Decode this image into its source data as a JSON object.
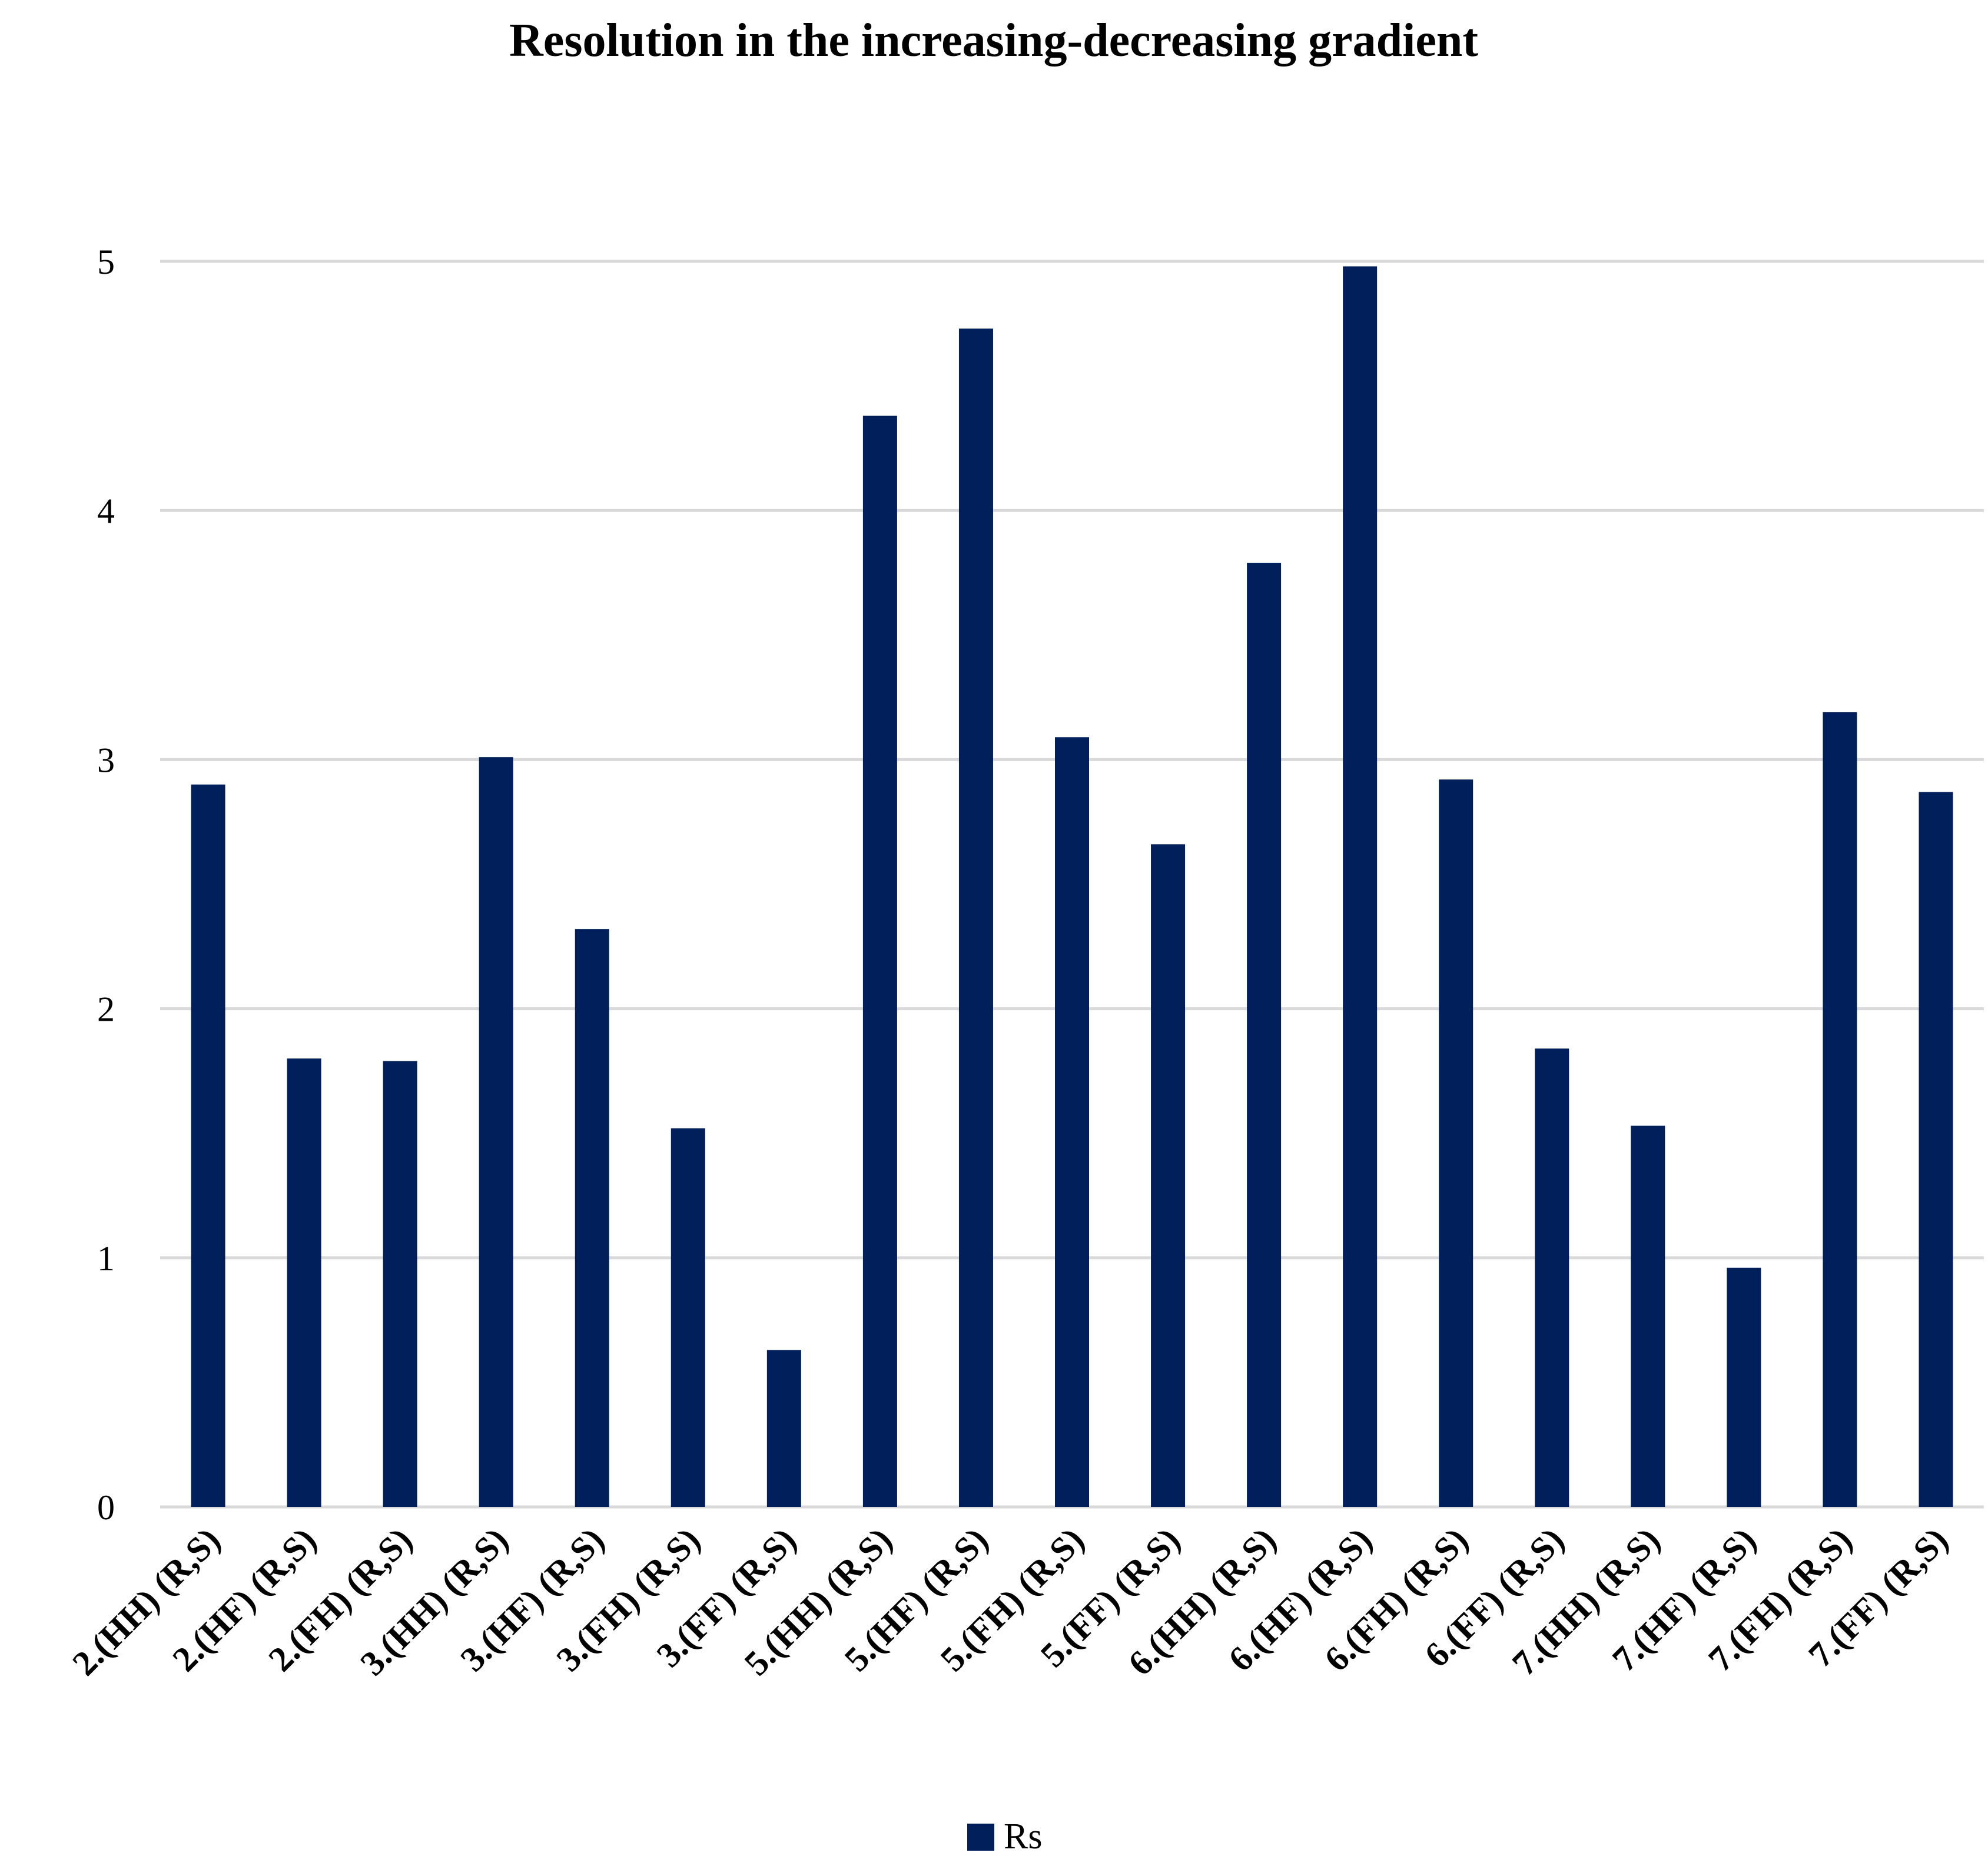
{
  "chart_data": {
    "type": "bar",
    "title": "Resolution in the increasing-decreasing gradient",
    "xlabel": "",
    "ylabel": "",
    "ylim": [
      0,
      5
    ],
    "yticks": [
      "0",
      "1",
      "2",
      "3",
      "4",
      "5"
    ],
    "grid": true,
    "legend_position": "bottom",
    "categories": [
      "2.(HH) (R,S)",
      "2.(HF) (R,S)",
      "2.(FH) (R,S)",
      "3.(HH) (R,S)",
      "3.(HF) (R,S)",
      "3.(FH) (R,S)",
      "3.(FF) (R,S)",
      "5.(HH) (R,S)",
      "5.(HF) (R,S)",
      "5.(FH) (R,S)",
      "5.(FF) (R,S)",
      "6.(HH) (R,S)",
      "6.(HF) (R,S)",
      "6.(FH) (R,S)",
      "6.(FF) (R,S)",
      "7.(HH) (R,S)",
      "7.(HF) (R,S)",
      "7.(FH) (R,S)",
      "7.(FF) (R,S)"
    ],
    "series": [
      {
        "name": "Rs",
        "color": "#001f5b",
        "values": [
          2.9,
          1.8,
          1.79,
          3.01,
          2.32,
          1.52,
          0.63,
          4.38,
          4.73,
          3.09,
          2.66,
          3.79,
          4.98,
          2.92,
          1.84,
          1.53,
          0.96,
          3.19,
          2.87
        ]
      }
    ],
    "colors": {
      "bar": "#001f5b",
      "grid": "#d9d9d9",
      "axis": "#d9d9d9"
    }
  }
}
